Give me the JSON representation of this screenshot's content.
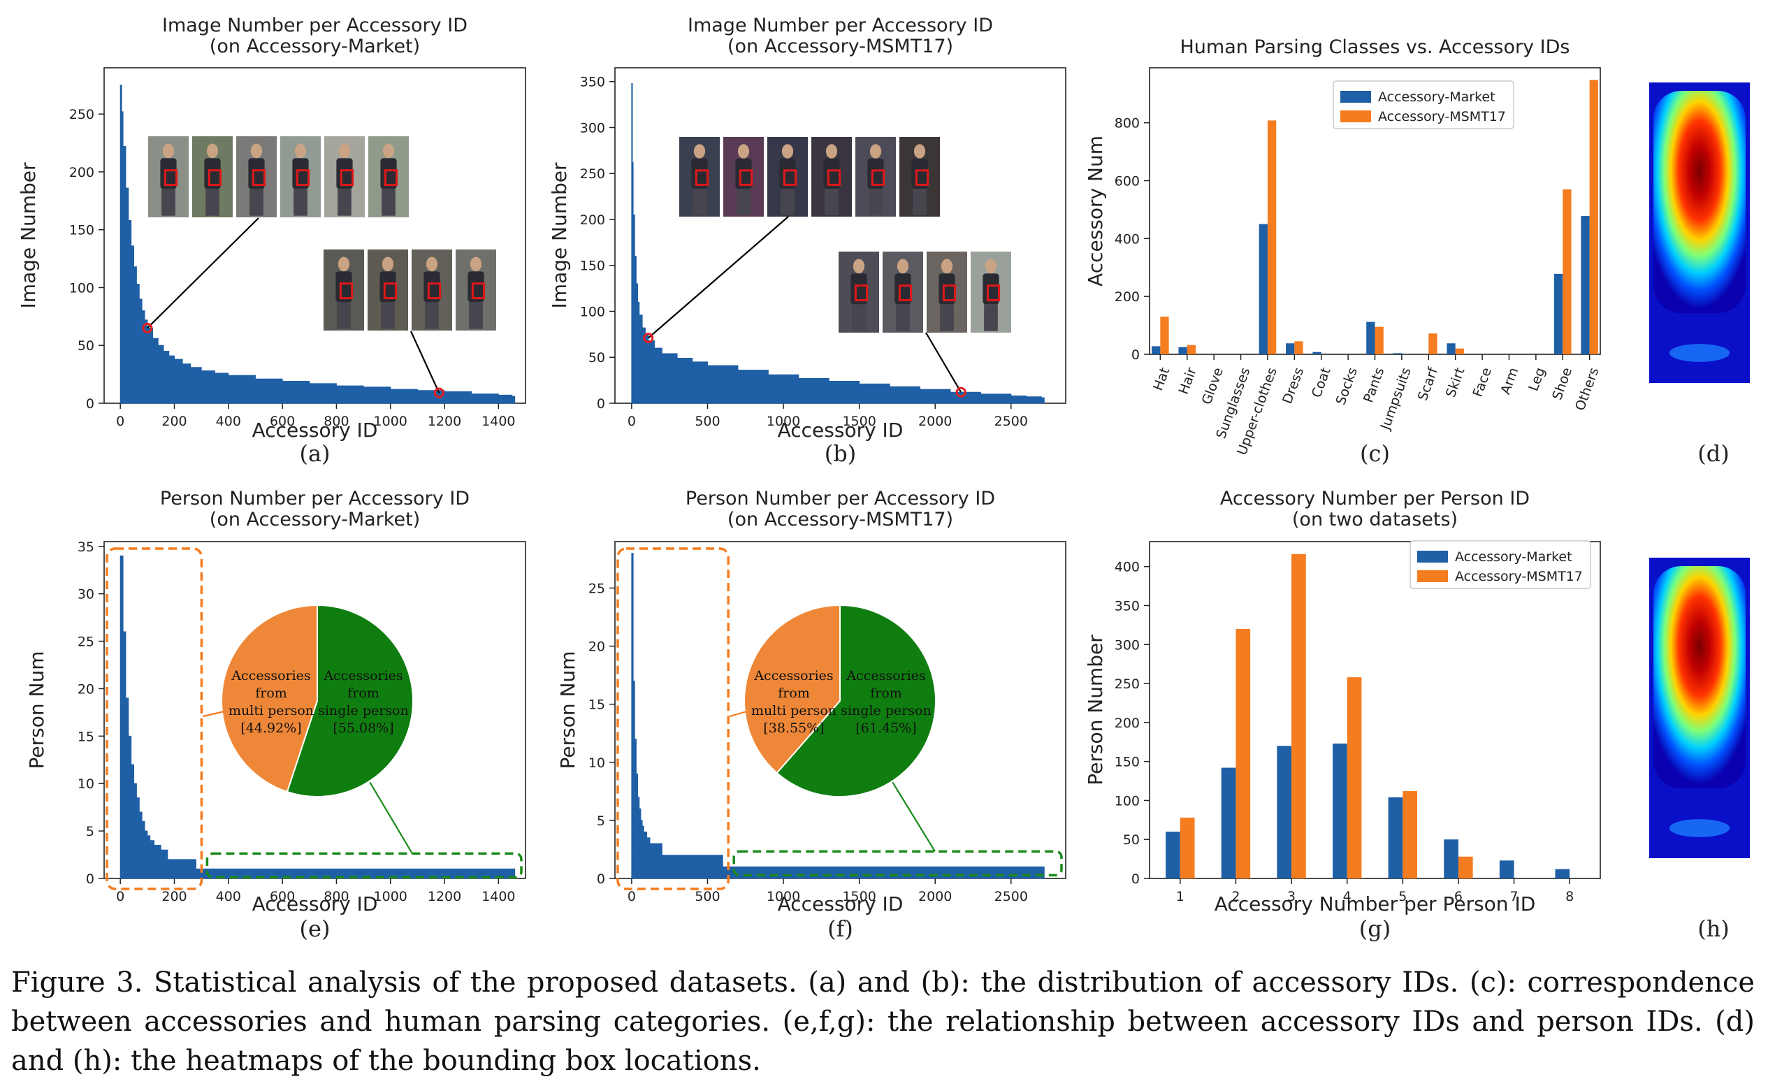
{
  "caption": {
    "label": "Figure 3.",
    "text": "Statistical analysis of the proposed datasets. (a) and (b): the distribution of accessory IDs. (c): correspondence between accessories and human parsing categories. (e,f,g): the relationship between accessory IDs and person IDs. (d) and (h): the heatmaps of the bounding box locations."
  },
  "colors": {
    "market": "#1f5fa6",
    "msmt": "#f57c1f",
    "green": "#1a8a1a",
    "pie_orange": "#ee8838",
    "pie_green": "#0f7d0f",
    "marker": "#e32020"
  },
  "chart_data": [
    {
      "id": "a",
      "type": "area",
      "panel_label": "(a)",
      "title": "Image Number per Accessory ID\n(on Accessory-Market)",
      "xlabel": "Accessory ID",
      "ylabel": "Image Number",
      "xlim": [
        -60,
        1500
      ],
      "ylim": [
        0,
        290
      ],
      "xticks": [
        0,
        200,
        400,
        600,
        800,
        1000,
        1200,
        1400
      ],
      "yticks": [
        0,
        50,
        100,
        150,
        200,
        250
      ],
      "series": [
        {
          "x": [
            0,
            5,
            10,
            20,
            30,
            40,
            50,
            60,
            70,
            80,
            90,
            100,
            120,
            140,
            160,
            180,
            200,
            230,
            260,
            300,
            350,
            400,
            500,
            600,
            700,
            800,
            900,
            1000,
            1100,
            1200,
            1300,
            1400,
            1450
          ],
          "values": [
            275,
            252,
            222,
            186,
            158,
            136,
            118,
            103,
            90,
            80,
            72,
            65,
            56,
            50,
            45,
            41,
            38,
            34,
            31,
            28,
            26,
            24,
            21,
            19,
            17,
            15,
            14,
            12,
            11,
            10,
            8,
            7,
            6
          ]
        }
      ],
      "highlight_points": [
        {
          "x": 100,
          "y": 65
        },
        {
          "x": 1180,
          "y": 9
        }
      ]
    },
    {
      "id": "b",
      "type": "area",
      "panel_label": "(b)",
      "title": "Image Number per Accessory ID\n(on Accessory-MSMT17)",
      "xlabel": "Accessory ID",
      "ylabel": "Image Number",
      "xlim": [
        -110,
        2860
      ],
      "ylim": [
        0,
        365
      ],
      "xticks": [
        0,
        500,
        1000,
        1500,
        2000,
        2500
      ],
      "yticks": [
        0,
        50,
        100,
        150,
        200,
        250,
        300,
        350
      ],
      "series": [
        {
          "x": [
            0,
            5,
            10,
            20,
            30,
            40,
            50,
            70,
            90,
            110,
            150,
            200,
            300,
            400,
            500,
            700,
            900,
            1100,
            1300,
            1500,
            1700,
            1900,
            2100,
            2300,
            2500,
            2600,
            2700
          ],
          "values": [
            348,
            262,
            205,
            160,
            130,
            110,
            96,
            82,
            74,
            68,
            60,
            54,
            49,
            45,
            41,
            36,
            31,
            27,
            24,
            21,
            18,
            15,
            12,
            10,
            8,
            7,
            6
          ]
        }
      ],
      "highlight_points": [
        {
          "x": 110,
          "y": 71
        },
        {
          "x": 2170,
          "y": 12
        }
      ]
    },
    {
      "id": "c",
      "type": "bar",
      "panel_label": "(c)",
      "title": "Human Parsing Classes vs. Accessory IDs",
      "xlabel": "",
      "ylabel": "Accessory Num",
      "ylim": [
        0,
        990
      ],
      "yticks": [
        0,
        200,
        400,
        600,
        800
      ],
      "categories": [
        "Hat",
        "Hair",
        "Glove",
        "Sunglasses",
        "Upper-clothes",
        "Dress",
        "Coat",
        "Socks",
        "Pants",
        "Jumpsuits",
        "Scarf",
        "Skirt",
        "Face",
        "Arm",
        "Leg",
        "Shoe",
        "Others"
      ],
      "series": [
        {
          "name": "Accessory-Market",
          "values": [
            28,
            25,
            0,
            0,
            450,
            38,
            8,
            0,
            112,
            4,
            0,
            38,
            0,
            0,
            0,
            278,
            478
          ]
        },
        {
          "name": "Accessory-MSMT17",
          "values": [
            130,
            32,
            0,
            0,
            808,
            45,
            0,
            0,
            95,
            0,
            72,
            20,
            0,
            0,
            0,
            570,
            948
          ]
        }
      ],
      "legend": "upper-center"
    },
    {
      "id": "e",
      "type": "bar",
      "panel_label": "(e)",
      "title": "Person Number per Accessory ID\n(on Accessory-Market)",
      "xlabel": "Accessory ID",
      "ylabel": "Person Num",
      "xlim": [
        -60,
        1500
      ],
      "ylim": [
        0,
        35.5
      ],
      "xticks": [
        0,
        200,
        400,
        600,
        800,
        1000,
        1200,
        1400
      ],
      "yticks": [
        0,
        5,
        10,
        15,
        20,
        25,
        30,
        35
      ],
      "series": [
        {
          "x": [
            0,
            10,
            20,
            30,
            40,
            50,
            60,
            70,
            80,
            90,
            100,
            110,
            125,
            150,
            175,
            200,
            225,
            250,
            280,
            1450
          ],
          "values": [
            34,
            26,
            19,
            15,
            12,
            10,
            8.5,
            7,
            6,
            5,
            4.5,
            4,
            3.5,
            3,
            2,
            2,
            2,
            2,
            1,
            1
          ]
        }
      ],
      "pie": {
        "slices": [
          {
            "label_lines": [
              "Accessories",
              "from",
              "multi person",
              "[44.92%]"
            ],
            "value": 44.92
          },
          {
            "label_lines": [
              "Accessories",
              "from",
              "single person",
              "[55.08%]"
            ],
            "value": 55.08
          }
        ]
      }
    },
    {
      "id": "f",
      "type": "bar",
      "panel_label": "(f)",
      "title": "Person Number per Accessory ID\n(on Accessory-MSMT17)",
      "xlabel": "Accessory ID",
      "ylabel": "Person Num",
      "xlim": [
        -110,
        2860
      ],
      "ylim": [
        0,
        29
      ],
      "xticks": [
        0,
        500,
        1000,
        1500,
        2000,
        2500
      ],
      "yticks": [
        0,
        5,
        10,
        15,
        20,
        25
      ],
      "series": [
        {
          "x": [
            0,
            10,
            20,
            30,
            40,
            50,
            60,
            70,
            80,
            100,
            120,
            150,
            200,
            250,
            300,
            400,
            500,
            600,
            2700
          ],
          "values": [
            28,
            17,
            12,
            9,
            7,
            6,
            5,
            4.5,
            4,
            3.5,
            3,
            3,
            2,
            2,
            2,
            2,
            2,
            1,
            1
          ]
        }
      ],
      "pie": {
        "slices": [
          {
            "label_lines": [
              "Accessories",
              "from",
              "multi person",
              "[38.55%]"
            ],
            "value": 38.55
          },
          {
            "label_lines": [
              "Accessories",
              "from",
              "single person",
              "[61.45%]"
            ],
            "value": 61.45
          }
        ]
      }
    },
    {
      "id": "g",
      "type": "bar",
      "panel_label": "(g)",
      "title": "Accessory Number per Person ID\n(on two datasets)",
      "xlabel": "Accessory Number per Person ID",
      "ylabel": "Person Number",
      "ylim": [
        0,
        432
      ],
      "yticks": [
        0,
        50,
        100,
        150,
        200,
        250,
        300,
        350,
        400
      ],
      "categories": [
        "1",
        "2",
        "3",
        "4",
        "5",
        "6",
        "7",
        "8"
      ],
      "series": [
        {
          "name": "Accessory-Market",
          "values": [
            60,
            142,
            170,
            173,
            104,
            50,
            23,
            12
          ]
        },
        {
          "name": "Accessory-MSMT17",
          "values": [
            78,
            320,
            416,
            258,
            112,
            28,
            0,
            0
          ]
        }
      ],
      "legend": "top-right"
    },
    {
      "id": "d",
      "type": "heatmap",
      "panel_label": "(d)"
    },
    {
      "id": "h",
      "type": "heatmap",
      "panel_label": "(h)"
    }
  ]
}
